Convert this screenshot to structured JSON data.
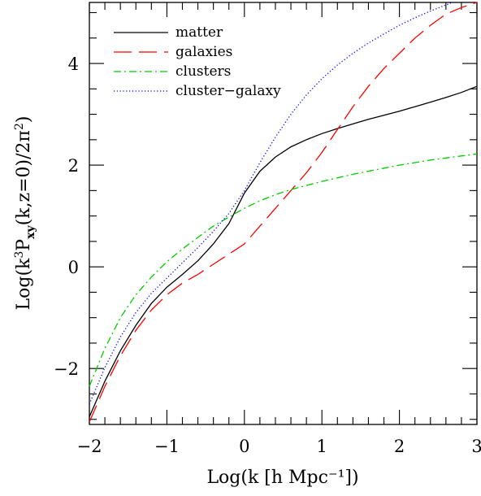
{
  "chart_data": {
    "type": "line",
    "title": "",
    "xlabel": "Log(k [h Mpc⁻¹])",
    "ylabel": {
      "prefix": "Log(k",
      "sup": "3",
      "mid": "P",
      "sub": "xy",
      "suffix": "(k,z=0)/2π",
      "sup2": "2",
      "close": ")"
    },
    "xlim": [
      -2,
      3
    ],
    "ylim": [
      -3.1,
      5.2
    ],
    "x_ticks": [
      "−2",
      "−1",
      "0",
      "1",
      "2",
      "3"
    ],
    "x_tick_values": [
      -2,
      -1,
      0,
      1,
      2,
      3
    ],
    "y_ticks": [
      "−2",
      "0",
      "2",
      "4"
    ],
    "y_tick_values": [
      -2,
      0,
      2,
      4
    ],
    "legend_position": "top-left",
    "series": [
      {
        "name": "matter",
        "color": "#000000",
        "style": "solid",
        "x": [
          -2.0,
          -1.8,
          -1.6,
          -1.4,
          -1.2,
          -1.0,
          -0.8,
          -0.6,
          -0.4,
          -0.2,
          0.0,
          0.2,
          0.4,
          0.6,
          0.8,
          1.0,
          1.2,
          1.4,
          1.6,
          1.8,
          2.0,
          2.2,
          2.4,
          2.6,
          2.8,
          3.0
        ],
        "y": [
          -2.95,
          -2.25,
          -1.65,
          -1.15,
          -0.72,
          -0.4,
          -0.15,
          0.12,
          0.45,
          0.85,
          1.45,
          1.88,
          2.16,
          2.36,
          2.5,
          2.62,
          2.72,
          2.81,
          2.9,
          2.98,
          3.06,
          3.15,
          3.24,
          3.33,
          3.43,
          3.55
        ]
      },
      {
        "name": "galaxies",
        "color": "#ff0000",
        "style": "dashed",
        "x": [
          -2.0,
          -1.8,
          -1.6,
          -1.4,
          -1.2,
          -1.0,
          -0.8,
          -0.6,
          -0.4,
          -0.2,
          0.0,
          0.2,
          0.4,
          0.6,
          0.8,
          1.0,
          1.2,
          1.4,
          1.6,
          1.8,
          2.0,
          2.2,
          2.4,
          2.6,
          2.8,
          3.0
        ],
        "y": [
          -3.05,
          -2.35,
          -1.75,
          -1.25,
          -0.85,
          -0.55,
          -0.32,
          -0.15,
          0.05,
          0.25,
          0.45,
          0.8,
          1.15,
          1.5,
          1.85,
          2.25,
          2.7,
          3.15,
          3.55,
          3.9,
          4.2,
          4.5,
          4.75,
          4.97,
          5.1,
          5.2
        ]
      },
      {
        "name": "clusters",
        "color": "#00cc00",
        "style": "dashdot",
        "x": [
          -2.0,
          -1.8,
          -1.6,
          -1.4,
          -1.2,
          -1.0,
          -0.8,
          -0.6,
          -0.4,
          -0.2,
          0.0,
          0.2,
          0.4,
          0.6,
          0.8,
          1.0,
          1.2,
          1.4,
          1.6,
          1.8,
          2.0,
          2.2,
          2.4,
          2.6,
          2.8,
          3.0
        ],
        "y": [
          -2.35,
          -1.6,
          -1.0,
          -0.55,
          -0.2,
          0.1,
          0.35,
          0.58,
          0.8,
          0.98,
          1.15,
          1.3,
          1.42,
          1.52,
          1.6,
          1.68,
          1.75,
          1.82,
          1.88,
          1.94,
          2.0,
          2.05,
          2.1,
          2.14,
          2.18,
          2.22
        ]
      },
      {
        "name": "cluster−galaxy",
        "color": "#0000ff",
        "style": "dotted",
        "x": [
          -2.0,
          -1.8,
          -1.6,
          -1.4,
          -1.2,
          -1.0,
          -0.8,
          -0.6,
          -0.4,
          -0.2,
          0.0,
          0.2,
          0.4,
          0.6,
          0.8,
          1.0,
          1.2,
          1.4,
          1.6,
          1.8,
          2.0,
          2.2,
          2.4,
          2.6,
          2.68
        ],
        "y": [
          -2.7,
          -1.98,
          -1.38,
          -0.9,
          -0.52,
          -0.22,
          0.08,
          0.38,
          0.7,
          1.05,
          1.5,
          2.05,
          2.55,
          3.0,
          3.38,
          3.7,
          3.97,
          4.2,
          4.4,
          4.58,
          4.75,
          4.9,
          5.03,
          5.15,
          5.2
        ]
      }
    ]
  }
}
